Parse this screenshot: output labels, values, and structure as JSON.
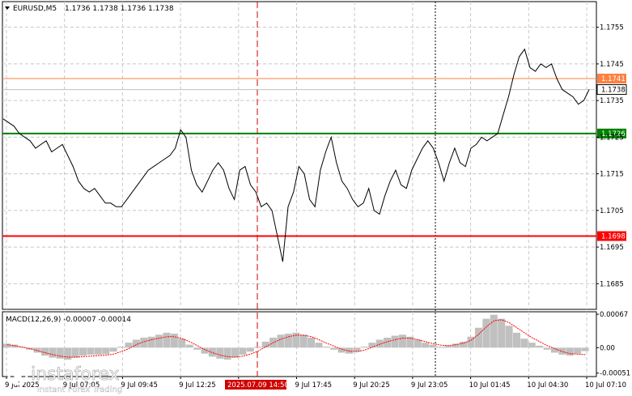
{
  "header": {
    "symbol": "EURUSD,M5",
    "ohlc": "1.1736 1.1738 1.1736 1.1738",
    "macd_title": "MACD(12,26,9) -0.00007 -0.00014"
  },
  "logo": {
    "name": "instaforex",
    "tagline": "Instant Forex Trading"
  },
  "colors": {
    "price_line": "#000000",
    "support_level": "#ff0000",
    "mid_level": "#008000",
    "resistance_level": "#ff8040",
    "current_price": "#c0c0c0",
    "macd_hist": "#c0c0c0",
    "macd_signal": "#ff0000",
    "grid": "#c8c8c8"
  },
  "chart_data": [
    {
      "type": "line",
      "title": "EURUSD,M5",
      "ylim": [
        1.1678,
        1.1762
      ],
      "y_ticks": [
        "1.1755",
        "1.1745",
        "1.1735",
        "1.1725",
        "1.1715",
        "1.1705",
        "1.1695",
        "1.1685"
      ],
      "x_tick_labels": [
        "9 Jul 2025",
        "9 Jul 07:05",
        "9 Jul 09:45",
        "9 Jul 12:25",
        "9 Jul 15:05",
        "9 Jul 17:45",
        "9 Jul 20:25",
        "9 Jul 23:05",
        "10 Jul 01:45",
        "10 Jul 04:30",
        "10 Jul 07:10"
      ],
      "cursor_label": "2025.07.09 14:50",
      "levels": [
        {
          "value": 1.1741,
          "label": "1.1741",
          "role": "resistance"
        },
        {
          "value": 1.1726,
          "label": "1.1726",
          "role": "mid"
        },
        {
          "value": 1.1698,
          "label": "1.1698",
          "role": "support"
        }
      ],
      "current_price": {
        "value": 1.1738,
        "label": "1.1738"
      },
      "series": [
        {
          "values": [
            1.173,
            1.1729,
            1.1728,
            1.1726,
            1.1725,
            1.1724,
            1.1722,
            1.1723,
            1.1724,
            1.1721,
            1.1722,
            1.1723,
            1.172,
            1.1717,
            1.1713,
            1.1711,
            1.171,
            1.1711,
            1.1709,
            1.1707,
            1.1707,
            1.1706,
            1.1706,
            1.1708,
            1.171,
            1.1712,
            1.1714,
            1.1716,
            1.1717,
            1.1718,
            1.1719,
            1.172,
            1.1722,
            1.1727,
            1.1725,
            1.1716,
            1.1712,
            1.171,
            1.1713,
            1.1716,
            1.1718,
            1.1716,
            1.1711,
            1.1708,
            1.1716,
            1.1717,
            1.1712,
            1.171,
            1.1706,
            1.1707,
            1.1705,
            1.1698,
            1.1691,
            1.1706,
            1.171,
            1.1717,
            1.1715,
            1.1708,
            1.1706,
            1.1716,
            1.1721,
            1.1725,
            1.1718,
            1.1713,
            1.1711,
            1.1708,
            1.1706,
            1.1707,
            1.1711,
            1.1705,
            1.1704,
            1.1709,
            1.1713,
            1.1716,
            1.1712,
            1.1711,
            1.1716,
            1.1719,
            1.1722,
            1.1724,
            1.1722,
            1.1718,
            1.1713,
            1.1718,
            1.1722,
            1.1718,
            1.1717,
            1.1722,
            1.1723,
            1.1725,
            1.1724,
            1.1725,
            1.1726,
            1.1731,
            1.1736,
            1.1742,
            1.1747,
            1.1749,
            1.1744,
            1.1743,
            1.1745,
            1.1744,
            1.1745,
            1.1741,
            1.1738,
            1.1737,
            1.1736,
            1.1734,
            1.1735,
            1.1738
          ]
        }
      ]
    },
    {
      "type": "bar",
      "title": "MACD(12,26,9)",
      "ylim": [
        -0.00058,
        0.00072
      ],
      "y_ticks": [
        "0.00067",
        "0.00",
        "-0.00051"
      ],
      "series": [
        {
          "name": "MACD",
          "values": [
            8e-05,
            6e-05,
            2e-05,
            -4e-05,
            -0.0001,
            -0.00016,
            -0.0002,
            -0.00022,
            -0.00024,
            -0.0002,
            -0.00016,
            -0.00014,
            -0.00014,
            -0.00013,
            -8e-05,
            2e-05,
            0.0001,
            0.00016,
            0.0002,
            0.00022,
            0.00026,
            0.0003,
            0.00028,
            0.00018,
            6e-05,
            -4e-05,
            -0.00012,
            -0.00018,
            -0.00022,
            -0.00024,
            -0.0002,
            -0.00014,
            -8e-05,
            2e-05,
            0.00012,
            0.0002,
            0.00026,
            0.00028,
            0.0003,
            0.00026,
            0.0002,
            0.0001,
            2e-05,
            -4e-05,
            -0.0001,
            -0.00012,
            -8e-05,
            2e-05,
            0.0001,
            0.00016,
            0.0002,
            0.00024,
            0.00026,
            0.00022,
            0.00016,
            0.0001,
            6e-05,
            2e-05,
            4e-05,
            8e-05,
            0.00012,
            0.00022,
            0.0004,
            0.00058,
            0.00066,
            0.00058,
            0.00044,
            0.0003,
            0.00018,
            0.0001,
            4e-05,
            -4e-05,
            -0.0001,
            -0.00014,
            -0.00016,
            -0.00012,
            -7e-05
          ]
        },
        {
          "name": "Signal",
          "values": [
            6e-05,
            4e-05,
            1e-05,
            -2e-05,
            -6e-05,
            -0.0001,
            -0.00014,
            -0.00017,
            -0.00019,
            -0.00019,
            -0.00018,
            -0.00017,
            -0.00016,
            -0.00015,
            -0.00013,
            -8e-05,
            -2e-05,
            6e-05,
            0.00012,
            0.00016,
            0.00019,
            0.00022,
            0.00022,
            0.00018,
            0.00012,
            4e-05,
            -4e-05,
            -0.0001,
            -0.00015,
            -0.00018,
            -0.00019,
            -0.00017,
            -0.00013,
            -7e-05,
            2e-05,
            0.0001,
            0.00017,
            0.00022,
            0.00025,
            0.00025,
            0.00022,
            0.00016,
            9e-05,
            3e-05,
            -3e-05,
            -7e-05,
            -8e-05,
            -5e-05,
            1e-05,
            7e-05,
            0.00012,
            0.00016,
            0.00019,
            0.00019,
            0.00016,
            0.00012,
            8e-05,
            5e-05,
            4e-05,
            6e-05,
            9e-05,
            0.00015,
            0.00027,
            0.00042,
            0.00054,
            0.00056,
            0.0005,
            0.0004,
            0.0003,
            0.0002,
            0.00012,
            4e-05,
            -2e-05,
            -8e-05,
            -0.00012,
            -0.00013,
            -0.00014
          ]
        }
      ]
    }
  ]
}
